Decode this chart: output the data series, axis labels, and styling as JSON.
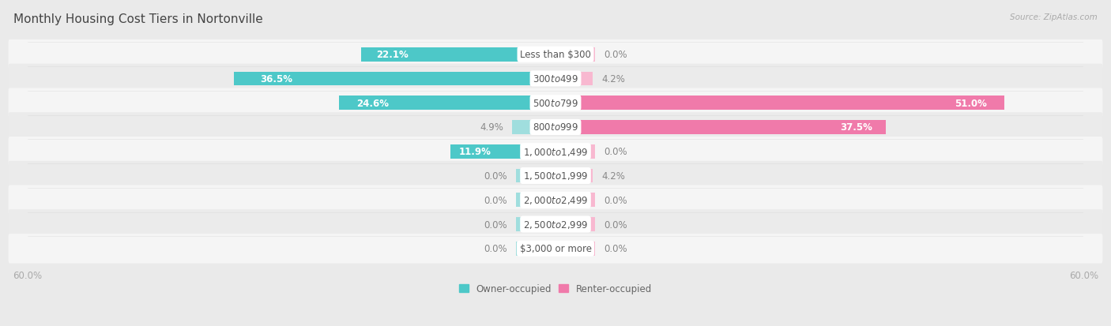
{
  "title": "Monthly Housing Cost Tiers in Nortonville",
  "source": "Source: ZipAtlas.com",
  "categories": [
    "Less than $300",
    "$300 to $499",
    "$500 to $799",
    "$800 to $999",
    "$1,000 to $1,499",
    "$1,500 to $1,999",
    "$2,000 to $2,499",
    "$2,500 to $2,999",
    "$3,000 or more"
  ],
  "owner_values": [
    22.1,
    36.5,
    24.6,
    4.9,
    11.9,
    0.0,
    0.0,
    0.0,
    0.0
  ],
  "renter_values": [
    0.0,
    4.2,
    51.0,
    37.5,
    0.0,
    4.2,
    0.0,
    0.0,
    0.0
  ],
  "owner_color": "#4dc8c8",
  "renter_color": "#f07aaa",
  "owner_color_light": "#a0dede",
  "renter_color_light": "#f8b8d0",
  "owner_label": "Owner-occupied",
  "renter_label": "Renter-occupied",
  "axis_limit": 60.0,
  "bg_color": "#eaeaea",
  "row_bg_even": "#f5f5f5",
  "row_bg_odd": "#ebebeb",
  "bar_height": 0.58,
  "title_fontsize": 11,
  "label_fontsize": 8.5,
  "cat_fontsize": 8.5,
  "axis_label_fontsize": 8.5,
  "source_fontsize": 7.5,
  "value_inside_color": "#ffffff",
  "value_outside_color": "#888888",
  "cat_label_color": "#555555",
  "stub_size": 4.5,
  "threshold_inside": 8.0
}
